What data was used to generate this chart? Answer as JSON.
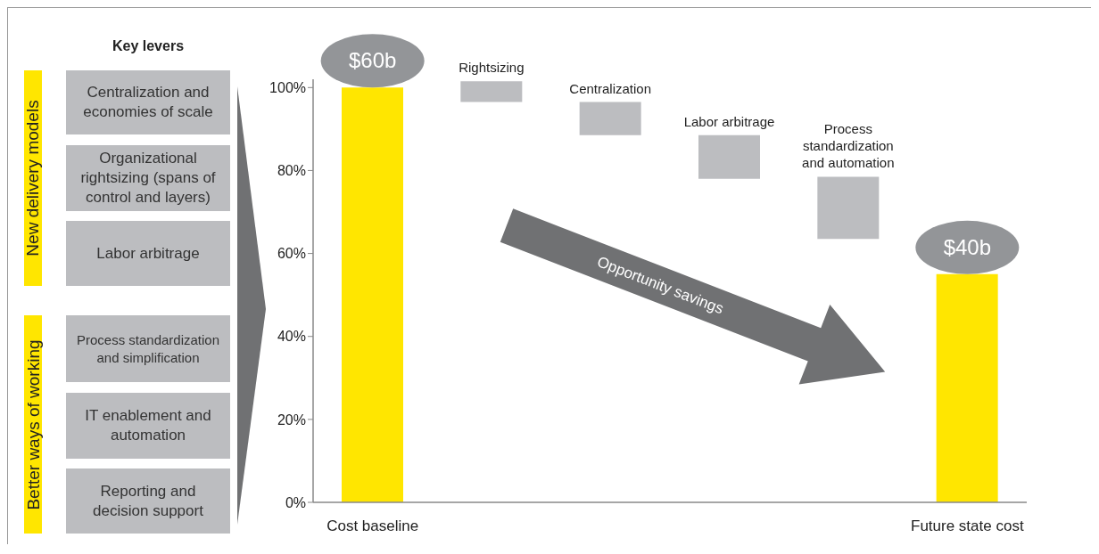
{
  "chart_data": {
    "type": "bar",
    "categories": [
      "Cost baseline",
      "Rightsizing",
      "Centralization",
      "Labor arbitrage",
      "Process standardization and automation",
      "Future state cost"
    ],
    "values": [
      100,
      5,
      8,
      10.5,
      15,
      55
    ],
    "base": [
      null,
      96.5,
      88.5,
      78,
      63.5,
      null
    ],
    "colors": [
      "#ffe600",
      "#bcbdc0",
      "#bcbdc0",
      "#bcbdc0",
      "#bcbdc0",
      "#ffe600"
    ],
    "ylim": [
      0,
      102
    ],
    "yticks": [
      {
        "value": 0,
        "label": "0%"
      },
      {
        "value": 20,
        "label": "20%"
      },
      {
        "value": 40,
        "label": "40%"
      },
      {
        "value": 60,
        "label": "60%"
      },
      {
        "value": 80,
        "label": "80%"
      },
      {
        "value": 100,
        "label": "100%"
      }
    ],
    "grid": false,
    "legend": false,
    "annotations": [
      "Key levers",
      "New delivery models",
      "Centralization and economies of scale",
      "Organizational rightsizing (spans of control and layers)",
      "Labor arbitrage",
      "Better ways of working",
      "Process standardization and simplification",
      "IT enablement and automation",
      "Reporting and decision support",
      "Opportunity savings",
      {
        "text": "$60b",
        "x": "Cost baseline",
        "y": 100
      },
      {
        "text": "$40b",
        "x": "Future state cost",
        "y": 55
      }
    ]
  }
}
